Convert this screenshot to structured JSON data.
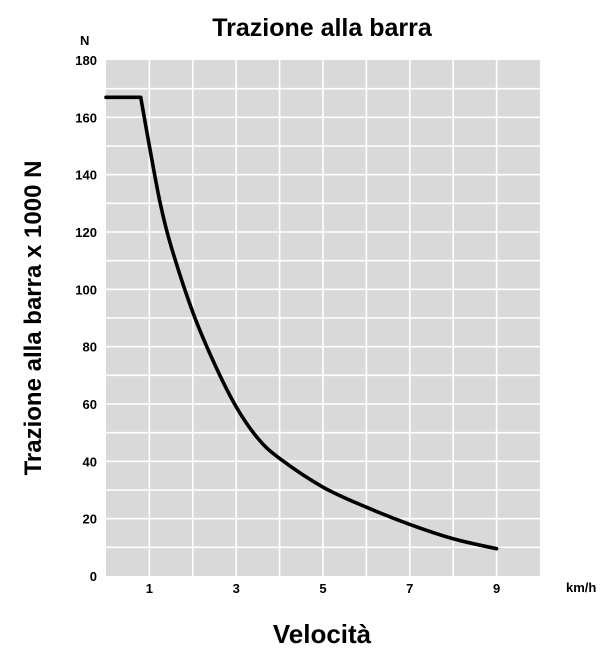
{
  "chart_data": {
    "type": "line",
    "title": "Trazione alla barra",
    "xlabel": "Velocità",
    "ylabel": "Trazione alla barra x 1000 N",
    "x_unit": "km/h",
    "y_unit": "N",
    "xlim": [
      0,
      10
    ],
    "ylim": [
      0,
      180
    ],
    "x_ticks": [
      1,
      3,
      5,
      7,
      9
    ],
    "y_ticks": [
      0,
      20,
      40,
      60,
      80,
      100,
      120,
      140,
      160,
      180
    ],
    "grid": true,
    "background_color": "#d9d9d9",
    "grid_color": "#ffffff",
    "line_color": "#000000",
    "series": [
      {
        "x": [
          0,
          0.8,
          1,
          1.25,
          1.5,
          2,
          2.5,
          3,
          3.5,
          4,
          5,
          6,
          7,
          8,
          9
        ],
        "values": [
          167,
          167,
          150,
          130,
          115,
          92,
          74,
          59,
          48,
          41,
          31,
          24,
          18,
          13,
          9.5
        ]
      }
    ]
  }
}
